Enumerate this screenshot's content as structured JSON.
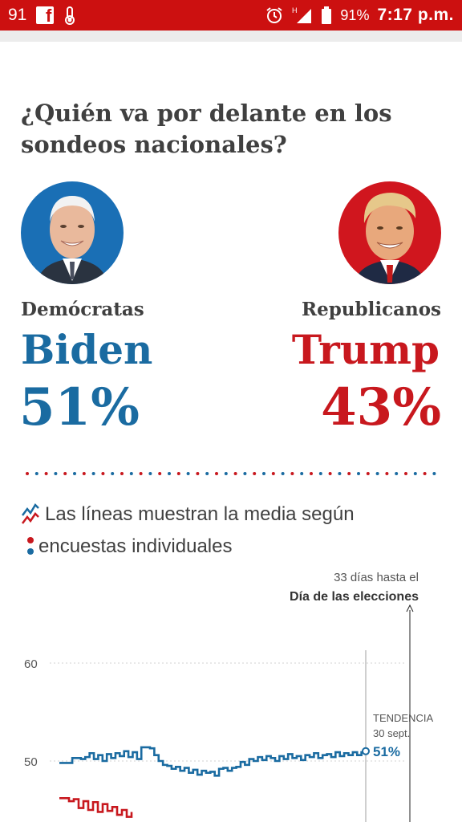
{
  "status_bar": {
    "notification_count": "91",
    "battery_percent": "91%",
    "time": "7:17 p.m.",
    "icons": [
      "facebook-icon",
      "thermometer-icon",
      "alarm-icon",
      "signal-icon",
      "battery-icon"
    ]
  },
  "article": {
    "title": "¿Quién va por delante en los sondeos nacionales?"
  },
  "candidates": {
    "democrat": {
      "party": "Demócratas",
      "name": "Biden",
      "percent": "51%",
      "color": "#1a6ba1"
    },
    "republican": {
      "party": "Republicanos",
      "name": "Trump",
      "percent": "43%",
      "color": "#c8181e"
    }
  },
  "legend": {
    "lines_text": "Las líneas muestran la media según",
    "dots_text": "encuestas individuales"
  },
  "chart_data": {
    "type": "line",
    "days_until_label": "33 días hasta el",
    "election_label": "Día de las elecciones",
    "trend_label": "TENDENCIA",
    "trend_date": "30 sept.",
    "y_ticks": [
      "60",
      "50"
    ],
    "ylim": [
      39,
      62
    ],
    "series": [
      {
        "name": "Biden",
        "color": "#1a6ba1",
        "end_label": "51%",
        "values": [
          49.8,
          49.8,
          49.8,
          50.3,
          50.3,
          50.2,
          50.4,
          50.8,
          50.2,
          50.6,
          50.0,
          50.7,
          50.3,
          50.8,
          50.5,
          51.0,
          50.4,
          50.9,
          50.2,
          51.4,
          51.4,
          51.3,
          50.6,
          50.0,
          49.6,
          49.5,
          49.2,
          49.4,
          49.0,
          49.3,
          48.8,
          49.1,
          48.6,
          49.0,
          48.8,
          48.9,
          48.5,
          49.2,
          49.3,
          49.0,
          49.3,
          49.4,
          49.9,
          49.6,
          50.2,
          50.0,
          50.4,
          50.1,
          50.5,
          50.3,
          50.0,
          50.5,
          50.2,
          50.7,
          50.3,
          50.5,
          50.1,
          50.6,
          50.4,
          50.8,
          50.3,
          50.6,
          50.7,
          50.4,
          50.9,
          50.5,
          50.8,
          50.6,
          50.9,
          50.6,
          50.9,
          51.0
        ]
      },
      {
        "name": "Trump",
        "color": "#c8181e",
        "values": [
          46.2,
          46.2,
          45.9,
          46.1,
          45.2,
          45.9,
          45.0,
          45.8,
          44.8,
          45.6,
          44.9,
          45.3,
          44.5,
          45.0,
          44.3,
          44.8
        ]
      }
    ]
  }
}
